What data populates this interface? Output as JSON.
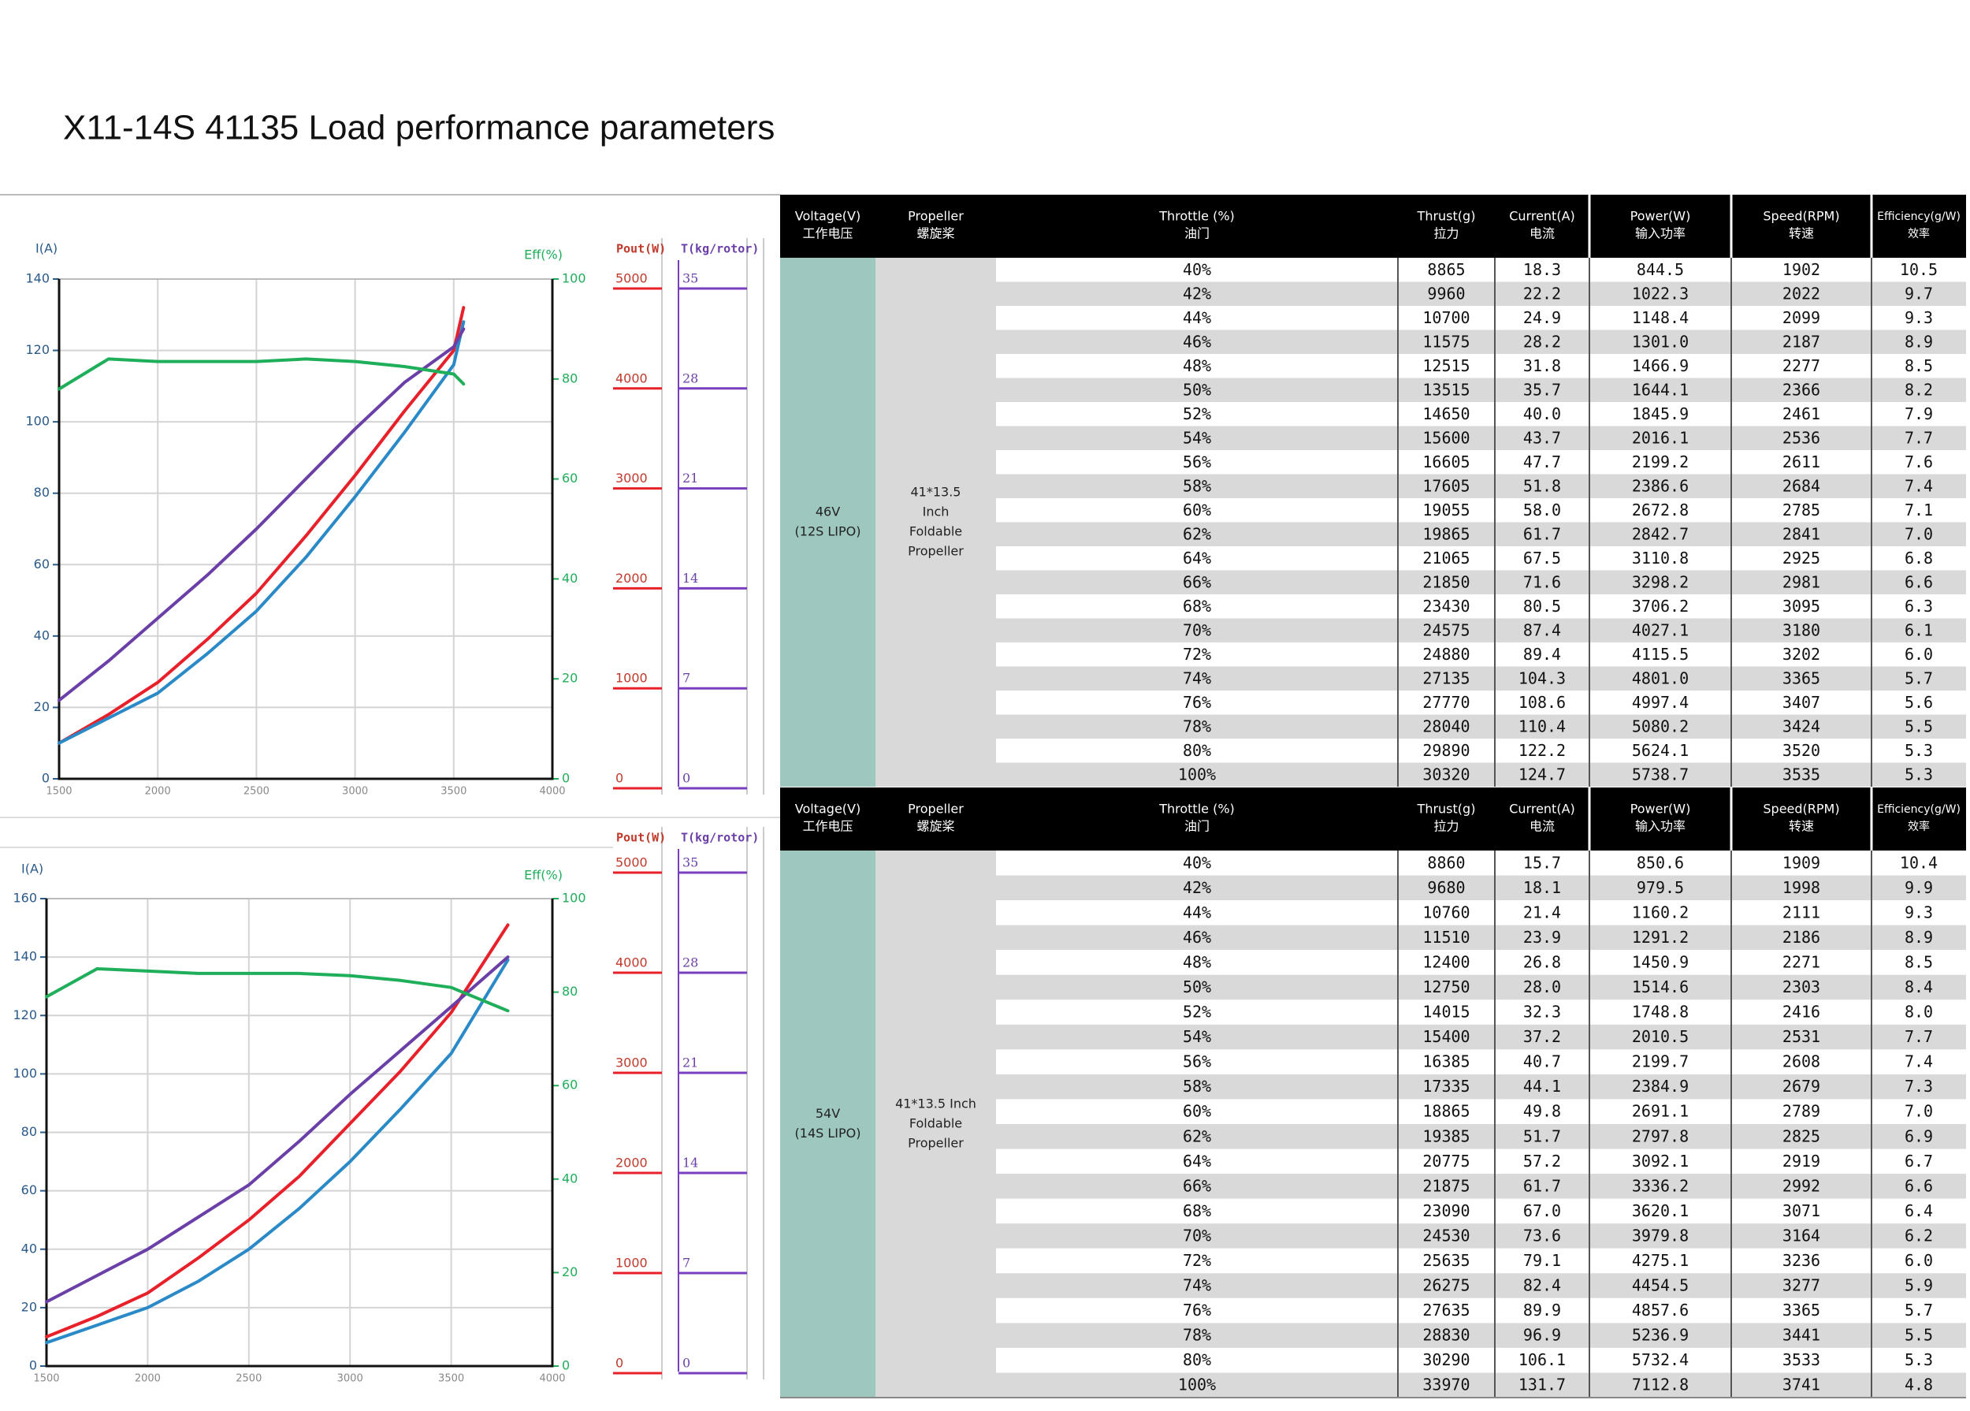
{
  "title": "X11-14S 41135 Load performance parameters",
  "chart_data": [
    {
      "type": "line",
      "ylabel": "I(A)",
      "y2label": "Eff(%)",
      "grid": true,
      "x": [
        1500,
        1750,
        2000,
        2250,
        2500,
        2750,
        3000,
        3250,
        3500,
        3550
      ],
      "xlim": [
        1500,
        4000
      ],
      "xticks": [
        1500,
        2000,
        2500,
        3000,
        3500,
        4000
      ],
      "ylim": [
        0,
        140
      ],
      "yticks": [
        0,
        20,
        40,
        60,
        80,
        100,
        120,
        140
      ],
      "y2lim": [
        0,
        100
      ],
      "y2ticks": [
        0,
        20,
        40,
        60,
        80,
        100
      ],
      "series": [
        {
          "color": "#e8202a",
          "values": [
            10,
            18,
            27,
            39,
            52,
            68,
            85,
            103,
            120,
            132
          ]
        },
        {
          "color": "#2a8ac8",
          "values": [
            10,
            17,
            24,
            35,
            47,
            62,
            79,
            97,
            116,
            128
          ]
        },
        {
          "color": "#6a3fa8",
          "values": [
            22,
            33,
            45,
            57,
            70,
            84,
            98,
            111,
            121,
            126
          ]
        },
        {
          "color": "#1fae5a",
          "axis": "y2",
          "values": [
            78,
            84,
            83.5,
            83.5,
            83.5,
            84,
            83.5,
            82.5,
            81,
            79
          ]
        }
      ]
    },
    {
      "type": "line",
      "ylabel": "I(A)",
      "y2label": "Eff(%)",
      "grid": true,
      "x": [
        1500,
        1750,
        2000,
        2250,
        2500,
        2750,
        3000,
        3250,
        3500,
        3780
      ],
      "xlim": [
        1500,
        4000
      ],
      "xticks": [
        1500,
        2000,
        2500,
        3000,
        3500,
        4000
      ],
      "ylim": [
        0,
        160
      ],
      "yticks": [
        0,
        20,
        40,
        60,
        80,
        100,
        120,
        140,
        160
      ],
      "y2lim": [
        0,
        100
      ],
      "y2ticks": [
        0,
        20,
        40,
        60,
        80,
        100
      ],
      "series": [
        {
          "color": "#e8202a",
          "values": [
            10,
            17,
            25,
            37,
            50,
            65,
            83,
            101,
            121,
            151
          ]
        },
        {
          "color": "#2a8ac8",
          "values": [
            8,
            14,
            20,
            29,
            40,
            54,
            70,
            88,
            107,
            139
          ]
        },
        {
          "color": "#6a3fa8",
          "values": [
            22,
            31,
            40,
            51,
            62,
            77,
            93,
            108,
            123,
            140
          ]
        },
        {
          "color": "#1fae5a",
          "axis": "y2",
          "values": [
            79,
            85,
            84.5,
            84,
            84,
            84,
            83.5,
            82.5,
            81,
            76
          ]
        }
      ]
    }
  ],
  "scales": [
    {
      "pout_label": "Pout(W)",
      "t_label": "T(kg/rotor)",
      "pout_lim": [
        0,
        5000
      ],
      "pout_ticks": [
        0,
        1000,
        2000,
        3000,
        4000,
        5000
      ],
      "t_lim": [
        0,
        35
      ],
      "t_ticks": [
        0,
        7,
        14,
        21,
        28,
        35
      ],
      "pout_color": "#e8202a",
      "t_color": "#7a3fc0"
    },
    {
      "pout_label": "Pout(W)",
      "t_label": "T(kg/rotor)",
      "pout_lim": [
        0,
        5000
      ],
      "pout_ticks": [
        0,
        1000,
        2000,
        3000,
        4000,
        5000
      ],
      "t_lim": [
        0,
        35
      ],
      "t_ticks": [
        0,
        7,
        14,
        21,
        28,
        35
      ],
      "pout_color": "#e8202a",
      "t_color": "#7a3fc0"
    }
  ],
  "tables": [
    {
      "header": [
        [
          "Voltage(V)",
          "工作电压"
        ],
        [
          "Propeller",
          "螺旋桨"
        ],
        [
          "Throttle (%)",
          "油门"
        ],
        [
          "Thrust(g)",
          "拉力"
        ],
        [
          "Current(A)",
          "电流"
        ],
        [
          "Power(W)",
          "输入功率"
        ],
        [
          "Speed(RPM)",
          "转速"
        ],
        [
          "Efficiency(g/W)",
          "效率"
        ]
      ],
      "voltage": [
        "46V",
        "(12S LIPO)"
      ],
      "propeller": [
        "41*13.5",
        "Inch",
        "Foldable",
        "Propeller"
      ],
      "rows": [
        [
          "40%",
          "8865",
          "18.3",
          "844.5",
          "1902",
          "10.5"
        ],
        [
          "42%",
          "9960",
          "22.2",
          "1022.3",
          "2022",
          "9.7"
        ],
        [
          "44%",
          "10700",
          "24.9",
          "1148.4",
          "2099",
          "9.3"
        ],
        [
          "46%",
          "11575",
          "28.2",
          "1301.0",
          "2187",
          "8.9"
        ],
        [
          "48%",
          "12515",
          "31.8",
          "1466.9",
          "2277",
          "8.5"
        ],
        [
          "50%",
          "13515",
          "35.7",
          "1644.1",
          "2366",
          "8.2"
        ],
        [
          "52%",
          "14650",
          "40.0",
          "1845.9",
          "2461",
          "7.9"
        ],
        [
          "54%",
          "15600",
          "43.7",
          "2016.1",
          "2536",
          "7.7"
        ],
        [
          "56%",
          "16605",
          "47.7",
          "2199.2",
          "2611",
          "7.6"
        ],
        [
          "58%",
          "17605",
          "51.8",
          "2386.6",
          "2684",
          "7.4"
        ],
        [
          "60%",
          "19055",
          "58.0",
          "2672.8",
          "2785",
          "7.1"
        ],
        [
          "62%",
          "19865",
          "61.7",
          "2842.7",
          "2841",
          "7.0"
        ],
        [
          "64%",
          "21065",
          "67.5",
          "3110.8",
          "2925",
          "6.8"
        ],
        [
          "66%",
          "21850",
          "71.6",
          "3298.2",
          "2981",
          "6.6"
        ],
        [
          "68%",
          "23430",
          "80.5",
          "3706.2",
          "3095",
          "6.3"
        ],
        [
          "70%",
          "24575",
          "87.4",
          "4027.1",
          "3180",
          "6.1"
        ],
        [
          "72%",
          "24880",
          "89.4",
          "4115.5",
          "3202",
          "6.0"
        ],
        [
          "74%",
          "27135",
          "104.3",
          "4801.0",
          "3365",
          "5.7"
        ],
        [
          "76%",
          "27770",
          "108.6",
          "4997.4",
          "3407",
          "5.6"
        ],
        [
          "78%",
          "28040",
          "110.4",
          "5080.2",
          "3424",
          "5.5"
        ],
        [
          "80%",
          "29890",
          "122.2",
          "5624.1",
          "3520",
          "5.3"
        ],
        [
          "100%",
          "30320",
          "124.7",
          "5738.7",
          "3535",
          "5.3"
        ]
      ]
    },
    {
      "header": [
        [
          "Voltage(V)",
          "工作电压"
        ],
        [
          "Propeller",
          "螺旋桨"
        ],
        [
          "Throttle (%)",
          "油门"
        ],
        [
          "Thrust(g)",
          "拉力"
        ],
        [
          "Current(A)",
          "电流"
        ],
        [
          "Power(W)",
          "输入功率"
        ],
        [
          "Speed(RPM)",
          "转速"
        ],
        [
          "Efficiency(g/W)",
          "效率"
        ]
      ],
      "voltage": [
        "54V",
        "(14S LIPO)"
      ],
      "propeller": [
        "41*13.5 Inch",
        "Foldable",
        "Propeller"
      ],
      "rows": [
        [
          "40%",
          "8860",
          "15.7",
          "850.6",
          "1909",
          "10.4"
        ],
        [
          "42%",
          "9680",
          "18.1",
          "979.5",
          "1998",
          "9.9"
        ],
        [
          "44%",
          "10760",
          "21.4",
          "1160.2",
          "2111",
          "9.3"
        ],
        [
          "46%",
          "11510",
          "23.9",
          "1291.2",
          "2186",
          "8.9"
        ],
        [
          "48%",
          "12400",
          "26.8",
          "1450.9",
          "2271",
          "8.5"
        ],
        [
          "50%",
          "12750",
          "28.0",
          "1514.6",
          "2303",
          "8.4"
        ],
        [
          "52%",
          "14015",
          "32.3",
          "1748.8",
          "2416",
          "8.0"
        ],
        [
          "54%",
          "15400",
          "37.2",
          "2010.5",
          "2531",
          "7.7"
        ],
        [
          "56%",
          "16385",
          "40.7",
          "2199.7",
          "2608",
          "7.4"
        ],
        [
          "58%",
          "17335",
          "44.1",
          "2384.9",
          "2679",
          "7.3"
        ],
        [
          "60%",
          "18865",
          "49.8",
          "2691.1",
          "2789",
          "7.0"
        ],
        [
          "62%",
          "19385",
          "51.7",
          "2797.8",
          "2825",
          "6.9"
        ],
        [
          "64%",
          "20775",
          "57.2",
          "3092.1",
          "2919",
          "6.7"
        ],
        [
          "66%",
          "21875",
          "61.7",
          "3336.2",
          "2992",
          "6.6"
        ],
        [
          "68%",
          "23090",
          "67.0",
          "3620.1",
          "3071",
          "6.4"
        ],
        [
          "70%",
          "24530",
          "73.6",
          "3979.8",
          "3164",
          "6.2"
        ],
        [
          "72%",
          "25635",
          "79.1",
          "4275.1",
          "3236",
          "6.0"
        ],
        [
          "74%",
          "26275",
          "82.4",
          "4454.5",
          "3277",
          "5.9"
        ],
        [
          "76%",
          "27635",
          "89.9",
          "4857.6",
          "3365",
          "5.7"
        ],
        [
          "78%",
          "28830",
          "96.9",
          "5236.9",
          "3441",
          "5.5"
        ],
        [
          "80%",
          "30290",
          "106.1",
          "5732.4",
          "3533",
          "5.3"
        ],
        [
          "100%",
          "33970",
          "131.7",
          "7112.8",
          "3741",
          "4.8"
        ]
      ]
    }
  ]
}
